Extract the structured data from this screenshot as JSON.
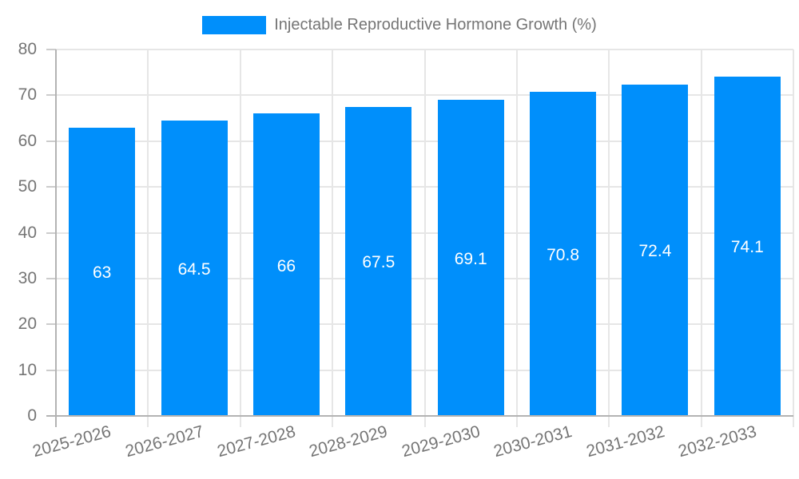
{
  "chart_data": {
    "type": "bar",
    "title": "Injectable Reproductive Hormone Growth (%)",
    "legend": [
      "Injectable Reproductive Hormone Growth (%)"
    ],
    "legend_position": "top-center",
    "categories": [
      "2025-2026",
      "2026-2027",
      "2027-2028",
      "2028-2029",
      "2029-2030",
      "2030-2031",
      "2031-2032",
      "2032-2033"
    ],
    "values": [
      63,
      64.5,
      66,
      67.5,
      69.1,
      70.8,
      72.4,
      74.1
    ],
    "value_labels": [
      "63",
      "64.5",
      "66",
      "67.5",
      "69.1",
      "70.8",
      "72.4",
      "74.1"
    ],
    "value_label_position": "inside-center",
    "xlabel": "",
    "ylabel": "",
    "ylim": [
      0,
      80
    ],
    "y_ticks": [
      0,
      10,
      20,
      30,
      40,
      50,
      60,
      70,
      80
    ],
    "grid": true,
    "x_tick_rotation_deg": -15,
    "colors": {
      "bar": "#008FFB",
      "grid": "#e6e6e6",
      "axis": "#b3b3b3",
      "tick": "#cccccc",
      "tick_label": "#757575",
      "data_label": "#ffffff",
      "background": "#ffffff"
    }
  }
}
